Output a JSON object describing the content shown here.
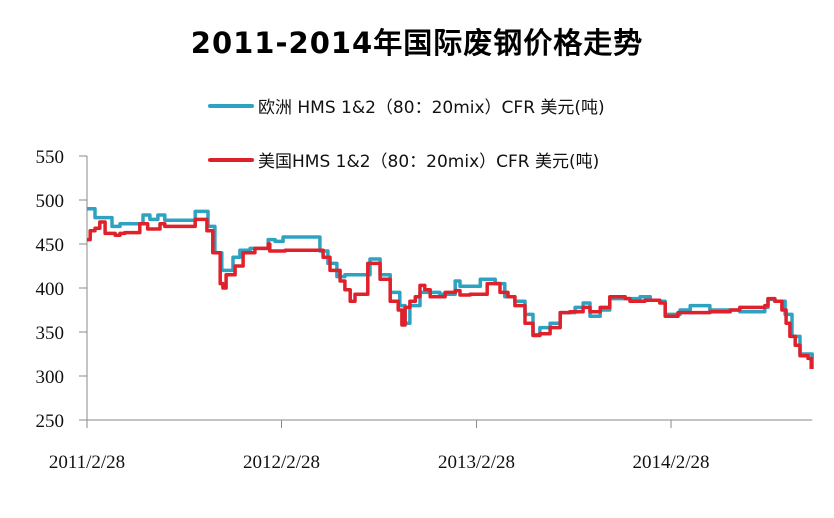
{
  "chart_data": {
    "type": "line",
    "title": "2011-2014年国际废钢价格走势",
    "xlabel": "",
    "ylabel": "",
    "ylim": [
      250,
      550
    ],
    "yticks": [
      250,
      300,
      350,
      400,
      450,
      500,
      550
    ],
    "xlim": [
      "2011-02-28",
      "2014-11-20"
    ],
    "xticks": [
      "2011-02-28",
      "2012-02-28",
      "2013-02-28",
      "2014-02-28"
    ],
    "xtick_labels": [
      "2011/2/28",
      "2012/2/28",
      "2013/2/28",
      "2014/2/28"
    ],
    "grid": false,
    "legend_position": "top",
    "series": [
      {
        "name": "欧洲 HMS 1&2（80：20mix）CFR 美元(吨)",
        "color": "#2ea3c1",
        "points": [
          [
            "2011-02-28",
            490
          ],
          [
            "2011-03-15",
            480
          ],
          [
            "2011-04-16",
            470
          ],
          [
            "2011-05-01",
            473
          ],
          [
            "2011-05-29",
            473
          ],
          [
            "2011-06-13",
            483
          ],
          [
            "2011-06-26",
            478
          ],
          [
            "2011-07-11",
            483
          ],
          [
            "2011-07-24",
            477
          ],
          [
            "2011-09-19",
            487
          ],
          [
            "2011-10-13",
            470
          ],
          [
            "2011-10-26",
            440
          ],
          [
            "2011-11-08",
            420
          ],
          [
            "2011-11-29",
            435
          ],
          [
            "2011-12-12",
            443
          ],
          [
            "2011-12-31",
            445
          ],
          [
            "2012-02-03",
            455
          ],
          [
            "2012-02-16",
            453
          ],
          [
            "2012-03-02",
            458
          ],
          [
            "2012-05-10",
            442
          ],
          [
            "2012-05-25",
            428
          ],
          [
            "2012-06-11",
            413
          ],
          [
            "2012-06-26",
            415
          ],
          [
            "2012-08-12",
            433
          ],
          [
            "2012-08-31",
            415
          ],
          [
            "2012-09-19",
            395
          ],
          [
            "2012-10-07",
            380
          ],
          [
            "2012-10-17",
            360
          ],
          [
            "2012-10-26",
            380
          ],
          [
            "2012-11-14",
            395
          ],
          [
            "2012-12-03",
            395
          ],
          [
            "2012-12-21",
            393
          ],
          [
            "2013-01-19",
            408
          ],
          [
            "2013-01-28",
            402
          ],
          [
            "2013-02-16",
            402
          ],
          [
            "2013-03-07",
            410
          ],
          [
            "2013-04-04",
            405
          ],
          [
            "2013-04-22",
            390
          ],
          [
            "2013-05-11",
            385
          ],
          [
            "2013-05-30",
            370
          ],
          [
            "2013-06-14",
            347
          ],
          [
            "2013-06-27",
            355
          ],
          [
            "2013-07-16",
            360
          ],
          [
            "2013-08-04",
            372
          ],
          [
            "2013-09-01",
            378
          ],
          [
            "2013-09-16",
            383
          ],
          [
            "2013-09-29",
            368
          ],
          [
            "2013-10-18",
            375
          ],
          [
            "2013-11-05",
            388
          ],
          [
            "2013-12-04",
            388
          ],
          [
            "2014-01-01",
            390
          ],
          [
            "2014-01-20",
            386
          ],
          [
            "2014-02-07",
            385
          ],
          [
            "2014-02-17",
            370
          ],
          [
            "2014-03-17",
            375
          ],
          [
            "2014-04-05",
            380
          ],
          [
            "2014-05-12",
            375
          ],
          [
            "2014-07-07",
            373
          ],
          [
            "2014-08-23",
            378
          ],
          [
            "2014-08-29",
            387
          ],
          [
            "2014-09-11",
            385
          ],
          [
            "2014-09-30",
            370
          ],
          [
            "2014-10-13",
            345
          ],
          [
            "2014-10-28",
            325
          ],
          [
            "2014-11-12",
            325
          ],
          [
            "2014-11-20",
            308
          ]
        ]
      },
      {
        "name": "美国HMS 1&2（80：20mix）CFR 美元(吨)",
        "color": "#e0202a",
        "points": [
          [
            "2011-02-28",
            455
          ],
          [
            "2011-03-06",
            465
          ],
          [
            "2011-03-15",
            468
          ],
          [
            "2011-03-24",
            475
          ],
          [
            "2011-04-03",
            462
          ],
          [
            "2011-04-22",
            460
          ],
          [
            "2011-05-01",
            462
          ],
          [
            "2011-05-10",
            463
          ],
          [
            "2011-06-07",
            473
          ],
          [
            "2011-06-22",
            467
          ],
          [
            "2011-07-15",
            473
          ],
          [
            "2011-07-24",
            470
          ],
          [
            "2011-09-19",
            478
          ],
          [
            "2011-10-11",
            465
          ],
          [
            "2011-10-22",
            440
          ],
          [
            "2011-11-05",
            405
          ],
          [
            "2011-11-10",
            400
          ],
          [
            "2011-11-16",
            415
          ],
          [
            "2011-12-03",
            425
          ],
          [
            "2011-12-18",
            440
          ],
          [
            "2012-01-09",
            445
          ],
          [
            "2012-02-03",
            450
          ],
          [
            "2012-02-06",
            442
          ],
          [
            "2012-03-06",
            443
          ],
          [
            "2012-05-10",
            443
          ],
          [
            "2012-05-16",
            435
          ],
          [
            "2012-05-29",
            420
          ],
          [
            "2012-06-17",
            408
          ],
          [
            "2012-06-26",
            398
          ],
          [
            "2012-07-06",
            385
          ],
          [
            "2012-07-15",
            393
          ],
          [
            "2012-08-03",
            393
          ],
          [
            "2012-08-08",
            428
          ],
          [
            "2012-08-21",
            428
          ],
          [
            "2012-08-31",
            410
          ],
          [
            "2012-09-19",
            385
          ],
          [
            "2012-10-04",
            375
          ],
          [
            "2012-10-11",
            358
          ],
          [
            "2012-10-17",
            378
          ],
          [
            "2012-10-26",
            385
          ],
          [
            "2012-11-05",
            390
          ],
          [
            "2012-11-14",
            403
          ],
          [
            "2012-11-23",
            398
          ],
          [
            "2012-12-03",
            390
          ],
          [
            "2012-12-21",
            390
          ],
          [
            "2012-12-31",
            395
          ],
          [
            "2013-01-19",
            397
          ],
          [
            "2013-01-28",
            392
          ],
          [
            "2013-02-16",
            393
          ],
          [
            "2013-03-16",
            393
          ],
          [
            "2013-03-20",
            405
          ],
          [
            "2013-04-13",
            395
          ],
          [
            "2013-04-28",
            390
          ],
          [
            "2013-05-11",
            380
          ],
          [
            "2013-05-30",
            360
          ],
          [
            "2013-06-14",
            346
          ],
          [
            "2013-06-27",
            348
          ],
          [
            "2013-07-16",
            355
          ],
          [
            "2013-08-04",
            372
          ],
          [
            "2013-08-22",
            373
          ],
          [
            "2013-09-16",
            378
          ],
          [
            "2013-09-29",
            373
          ],
          [
            "2013-10-18",
            378
          ],
          [
            "2013-11-05",
            390
          ],
          [
            "2013-12-04",
            388
          ],
          [
            "2013-12-13",
            385
          ],
          [
            "2014-01-10",
            386
          ],
          [
            "2014-02-07",
            383
          ],
          [
            "2014-02-17",
            368
          ],
          [
            "2014-03-13",
            372
          ],
          [
            "2014-05-12",
            373
          ],
          [
            "2014-06-19",
            375
          ],
          [
            "2014-07-07",
            378
          ],
          [
            "2014-08-23",
            380
          ],
          [
            "2014-08-29",
            388
          ],
          [
            "2014-09-11",
            385
          ],
          [
            "2014-09-24",
            375
          ],
          [
            "2014-10-02",
            360
          ],
          [
            "2014-10-09",
            345
          ],
          [
            "2014-10-19",
            335
          ],
          [
            "2014-10-28",
            323
          ],
          [
            "2014-11-12",
            320
          ],
          [
            "2014-11-18",
            308
          ]
        ]
      }
    ]
  }
}
